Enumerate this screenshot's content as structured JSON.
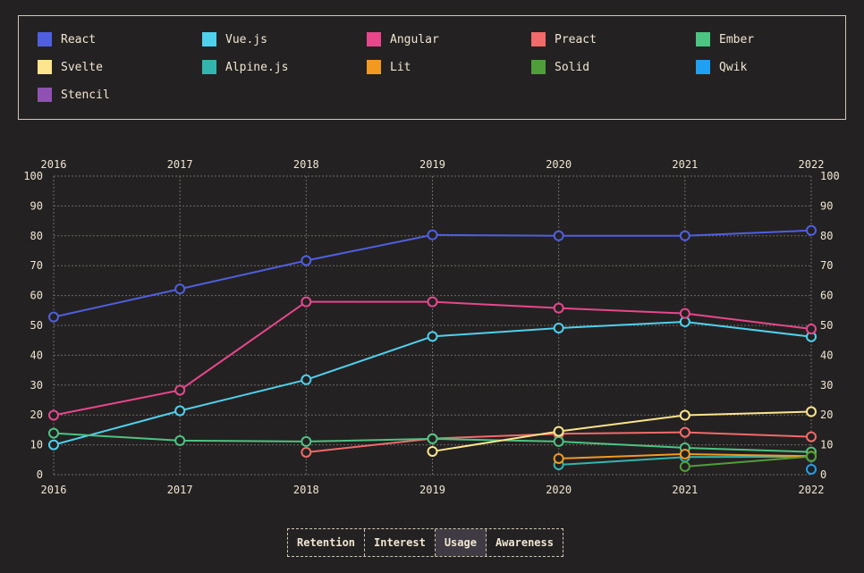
{
  "legend": [
    {
      "name": "React",
      "color": "#4f5fe0"
    },
    {
      "name": "Vue.js",
      "color": "#4fd1ed"
    },
    {
      "name": "Angular",
      "color": "#e8478c"
    },
    {
      "name": "Preact",
      "color": "#f26a6a"
    },
    {
      "name": "Ember",
      "color": "#4cc482"
    },
    {
      "name": "Svelte",
      "color": "#fce58c"
    },
    {
      "name": "Alpine.js",
      "color": "#33b5ad"
    },
    {
      "name": "Lit",
      "color": "#f29a1f"
    },
    {
      "name": "Solid",
      "color": "#4f9e3a"
    },
    {
      "name": "Qwik",
      "color": "#1fa0f0"
    },
    {
      "name": "Stencil",
      "color": "#8f52b3"
    }
  ],
  "chart_data": {
    "type": "line",
    "x": [
      2016,
      2017,
      2018,
      2019,
      2020,
      2021,
      2022
    ],
    "ylim": [
      0,
      100
    ],
    "yticks": [
      0,
      10,
      20,
      30,
      40,
      50,
      60,
      70,
      80,
      90,
      100
    ],
    "grid": true,
    "series": [
      {
        "name": "React",
        "color": "#4f5fe0",
        "values": [
          52.8,
          62.2,
          71.7,
          80.3,
          80.0,
          80.0,
          81.8
        ]
      },
      {
        "name": "Vue.js",
        "color": "#4fd1ed",
        "values": [
          10.0,
          21.4,
          31.8,
          46.3,
          49.1,
          51.2,
          46.2
        ]
      },
      {
        "name": "Angular",
        "color": "#e8478c",
        "values": [
          19.9,
          28.3,
          57.9,
          57.9,
          55.8,
          54.0,
          48.8
        ]
      },
      {
        "name": "Preact",
        "color": "#f26a6a",
        "values": [
          null,
          null,
          7.5,
          12.1,
          13.7,
          14.2,
          12.7
        ]
      },
      {
        "name": "Ember",
        "color": "#4cc482",
        "values": [
          13.9,
          11.4,
          11.1,
          12.0,
          11.1,
          9.0,
          7.6
        ]
      },
      {
        "name": "Svelte",
        "color": "#fce58c",
        "values": [
          null,
          null,
          null,
          7.8,
          14.5,
          19.9,
          21.1
        ]
      },
      {
        "name": "Alpine.js",
        "color": "#33b5ad",
        "values": [
          null,
          null,
          null,
          null,
          3.3,
          5.9,
          6.0
        ]
      },
      {
        "name": "Lit",
        "color": "#f29a1f",
        "values": [
          null,
          null,
          null,
          null,
          5.4,
          6.9,
          6.2
        ]
      },
      {
        "name": "Solid",
        "color": "#4f9e3a",
        "values": [
          null,
          null,
          null,
          null,
          null,
          2.7,
          6.1
        ]
      },
      {
        "name": "Qwik",
        "color": "#1fa0f0",
        "values": [
          null,
          null,
          null,
          null,
          null,
          null,
          1.8
        ]
      },
      {
        "name": "Stencil",
        "color": "#8f52b3",
        "values": [
          null,
          null,
          null,
          null,
          null,
          null,
          null
        ]
      }
    ]
  },
  "tabs": [
    {
      "label": "Retention",
      "active": false
    },
    {
      "label": "Interest",
      "active": false
    },
    {
      "label": "Usage",
      "active": true
    },
    {
      "label": "Awareness",
      "active": false
    }
  ],
  "colors": {
    "background": "#242122",
    "text": "#efe6d2",
    "grid": "#6e6a66"
  }
}
